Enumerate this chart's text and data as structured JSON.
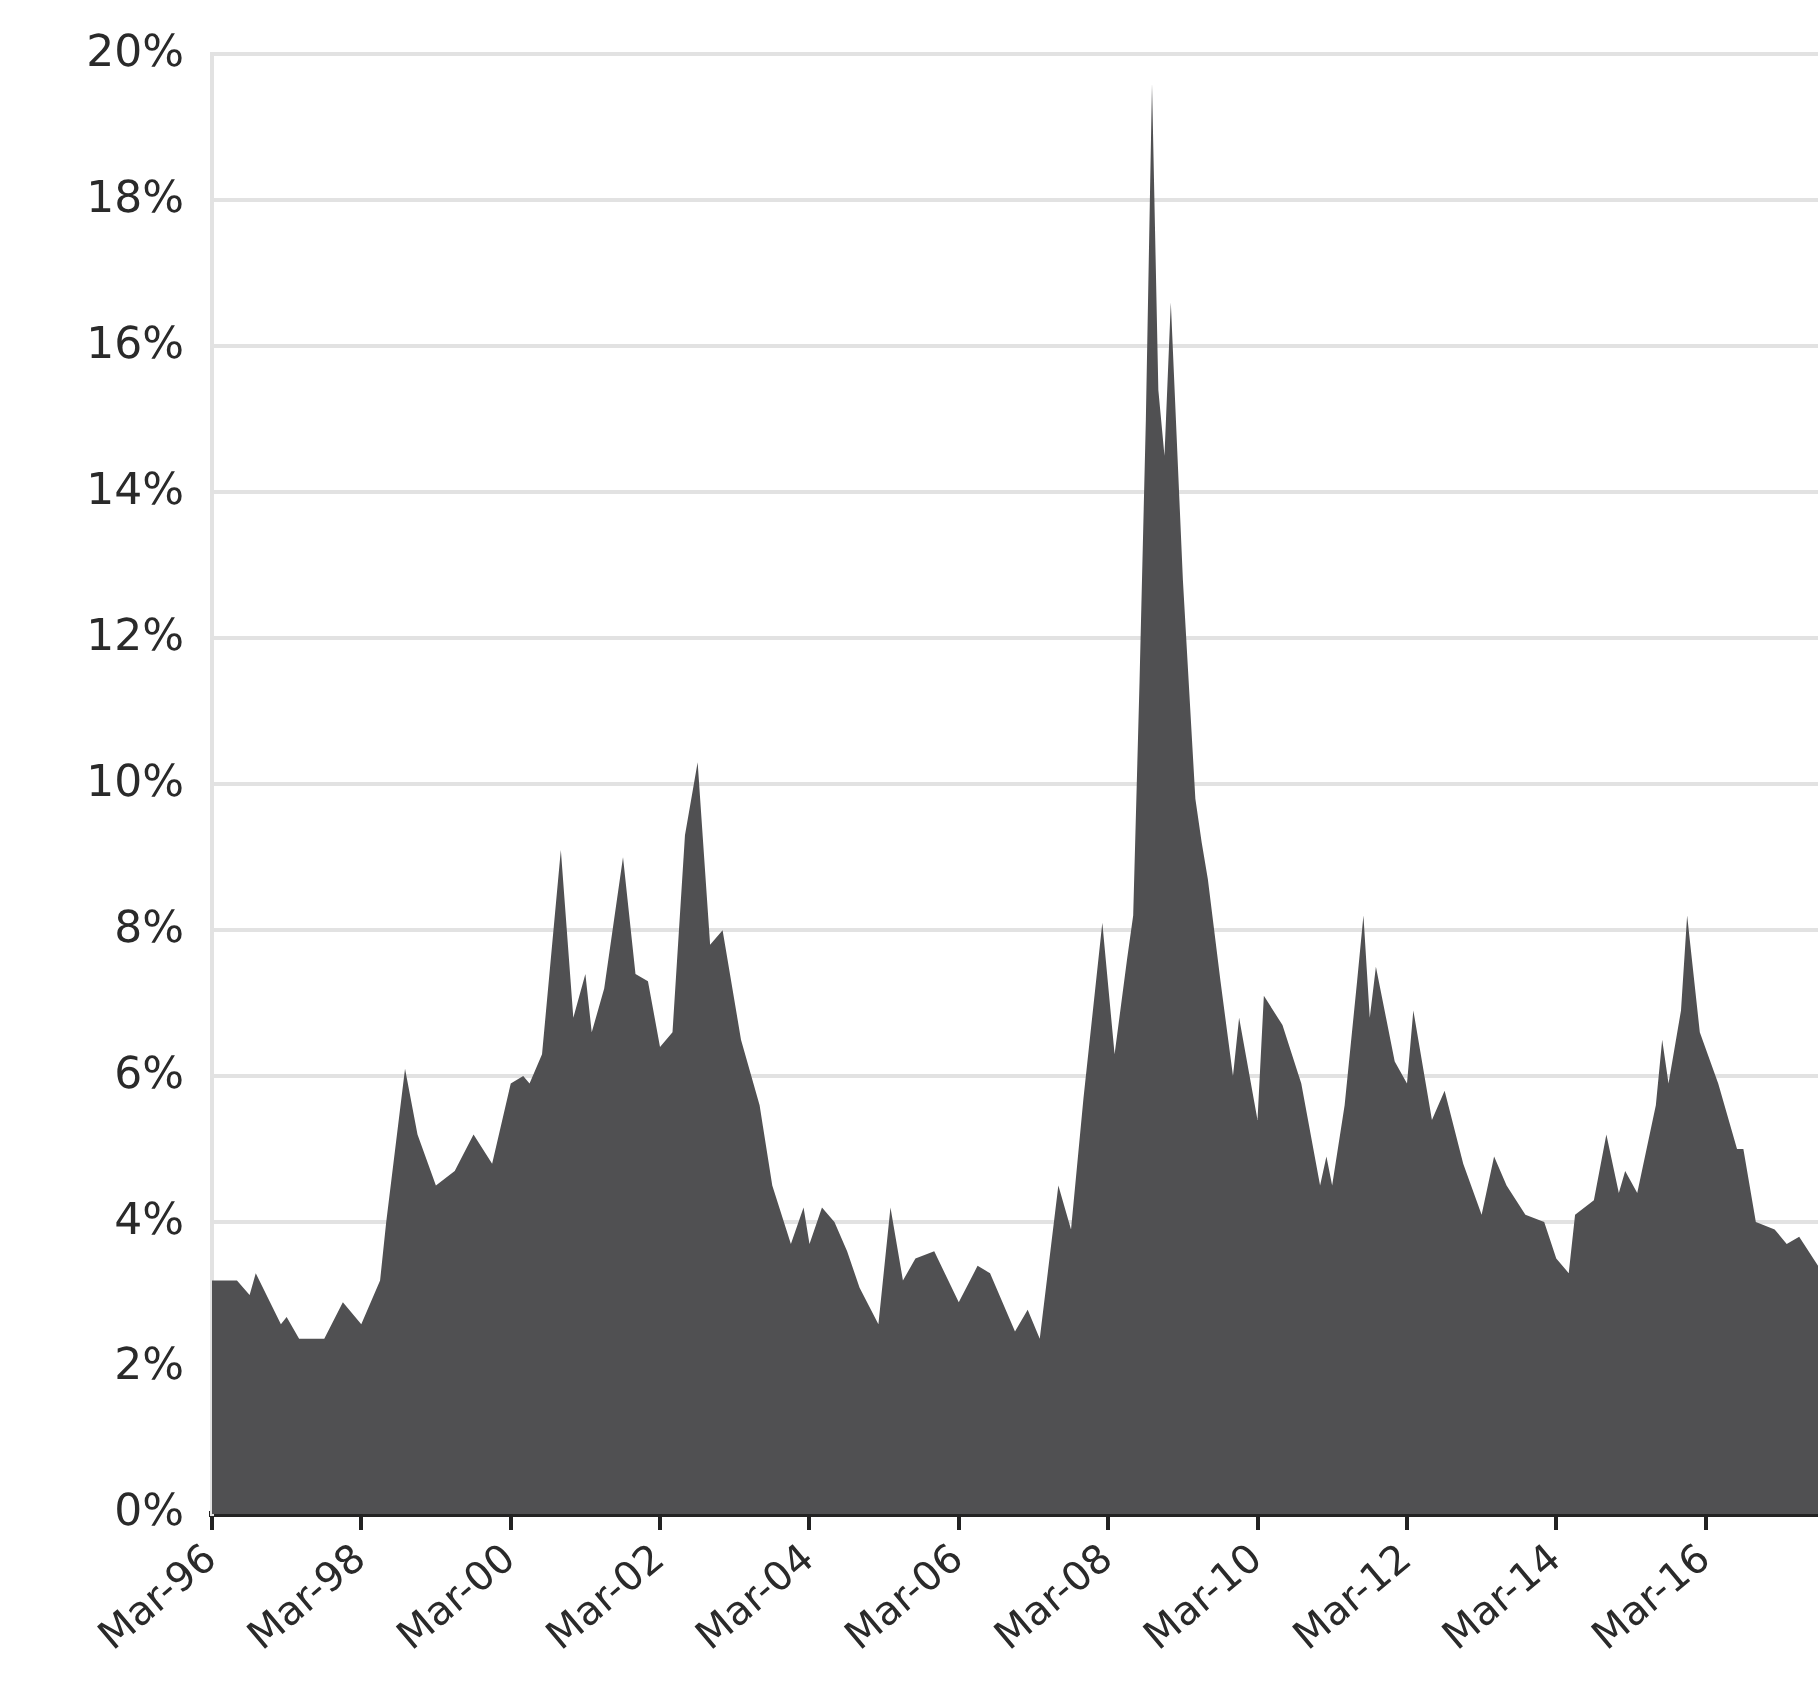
{
  "chart_data": {
    "type": "area",
    "x": [
      "1996-03",
      "1996-07",
      "1996-09",
      "1996-10",
      "1997-02",
      "1997-03",
      "1997-05",
      "1997-09",
      "1997-12",
      "1998-03",
      "1998-06",
      "1998-07",
      "1998-10",
      "1998-12",
      "1999-03",
      "1999-06",
      "1999-09",
      "1999-12",
      "2000-03",
      "2000-05",
      "2000-06",
      "2000-08",
      "2000-11",
      "2001-01",
      "2001-03",
      "2001-04",
      "2001-06",
      "2001-09",
      "2001-11",
      "2002-01",
      "2002-03",
      "2002-05",
      "2002-07",
      "2002-09",
      "2002-11",
      "2003-01",
      "2003-04",
      "2003-07",
      "2003-09",
      "2003-12",
      "2004-02",
      "2004-03",
      "2004-05",
      "2004-07",
      "2004-09",
      "2004-11",
      "2005-02",
      "2005-04",
      "2005-06",
      "2005-08",
      "2005-11",
      "2006-03",
      "2006-06",
      "2006-08",
      "2006-12",
      "2007-02",
      "2007-04",
      "2007-07",
      "2007-09",
      "2007-11",
      "2008-02",
      "2008-04",
      "2008-06",
      "2008-07",
      "2008-08",
      "2008-09",
      "2008-10",
      "2008-11",
      "2008-12",
      "2009-01",
      "2009-03",
      "2009-05",
      "2009-06",
      "2009-07",
      "2009-09",
      "2009-11",
      "2009-12",
      "2010-03",
      "2010-04",
      "2010-07",
      "2010-10",
      "2011-01",
      "2011-02",
      "2011-03",
      "2011-05",
      "2011-07",
      "2011-08",
      "2011-09",
      "2011-10",
      "2012-01",
      "2012-03",
      "2012-04",
      "2012-07",
      "2012-09",
      "2012-12",
      "2013-03",
      "2013-05",
      "2013-07",
      "2013-10",
      "2014-01",
      "2014-03",
      "2014-05",
      "2014-06",
      "2014-09",
      "2014-11",
      "2015-01",
      "2015-02",
      "2015-04",
      "2015-07",
      "2015-08",
      "2015-09",
      "2015-11",
      "2015-12",
      "2016-02",
      "2016-05",
      "2016-08",
      "2016-09",
      "2016-11",
      "2017-02",
      "2017-04",
      "2017-06",
      "2017-09"
    ],
    "series": [
      {
        "color": "#505052",
        "values": [
          3.2,
          3.2,
          3.0,
          3.3,
          2.6,
          2.7,
          2.4,
          2.4,
          2.9,
          2.6,
          3.2,
          4.0,
          6.1,
          5.2,
          4.5,
          4.7,
          5.2,
          4.8,
          5.9,
          6.0,
          5.9,
          6.3,
          9.1,
          6.8,
          7.4,
          6.6,
          7.2,
          9.0,
          7.4,
          7.3,
          6.4,
          6.6,
          9.3,
          10.3,
          7.8,
          8.0,
          6.5,
          5.6,
          4.5,
          3.7,
          4.2,
          3.7,
          4.2,
          4.0,
          3.6,
          3.1,
          2.6,
          4.2,
          3.2,
          3.5,
          3.6,
          2.9,
          3.4,
          3.3,
          2.5,
          2.8,
          2.4,
          4.5,
          3.9,
          5.7,
          8.1,
          6.3,
          7.6,
          8.2,
          11.4,
          15.0,
          19.6,
          15.4,
          14.5,
          16.6,
          12.8,
          9.8,
          9.2,
          8.7,
          7.3,
          6.0,
          6.8,
          5.4,
          7.1,
          6.7,
          5.9,
          4.5,
          4.9,
          4.5,
          5.6,
          7.3,
          8.2,
          6.8,
          7.5,
          6.2,
          5.9,
          6.9,
          5.4,
          5.8,
          4.8,
          4.1,
          4.9,
          4.5,
          4.1,
          4.0,
          3.5,
          3.3,
          4.1,
          4.3,
          5.2,
          4.4,
          4.7,
          4.4,
          5.6,
          6.5,
          5.9,
          6.9,
          8.2,
          6.6,
          5.9,
          5.0,
          5.0,
          4.0,
          3.9,
          3.7,
          3.8,
          3.4
        ]
      }
    ],
    "xlim": [
      "1996-03",
      "2017-09"
    ],
    "xticks": [
      {
        "value": "1996-03",
        "label": "Mar-96"
      },
      {
        "value": "1998-03",
        "label": "Mar-98"
      },
      {
        "value": "2000-03",
        "label": "Mar-00"
      },
      {
        "value": "2002-03",
        "label": "Mar-02"
      },
      {
        "value": "2004-03",
        "label": "Mar-04"
      },
      {
        "value": "2006-03",
        "label": "Mar-06"
      },
      {
        "value": "2008-03",
        "label": "Mar-08"
      },
      {
        "value": "2010-03",
        "label": "Mar-10"
      },
      {
        "value": "2012-03",
        "label": "Mar-12"
      },
      {
        "value": "2014-03",
        "label": "Mar-14"
      },
      {
        "value": "2016-03",
        "label": "Mar-16"
      }
    ],
    "ylim": [
      0,
      20
    ],
    "yticks": [
      {
        "value": 0,
        "label": "0%"
      },
      {
        "value": 2,
        "label": "2%"
      },
      {
        "value": 4,
        "label": "4%"
      },
      {
        "value": 6,
        "label": "6%"
      },
      {
        "value": 8,
        "label": "8%"
      },
      {
        "value": 10,
        "label": "10%"
      },
      {
        "value": 12,
        "label": "12%"
      },
      {
        "value": 14,
        "label": "14%"
      },
      {
        "value": 16,
        "label": "16%"
      },
      {
        "value": 18,
        "label": "18%"
      },
      {
        "value": 20,
        "label": "20%"
      }
    ],
    "grid": "y",
    "legend": false
  }
}
